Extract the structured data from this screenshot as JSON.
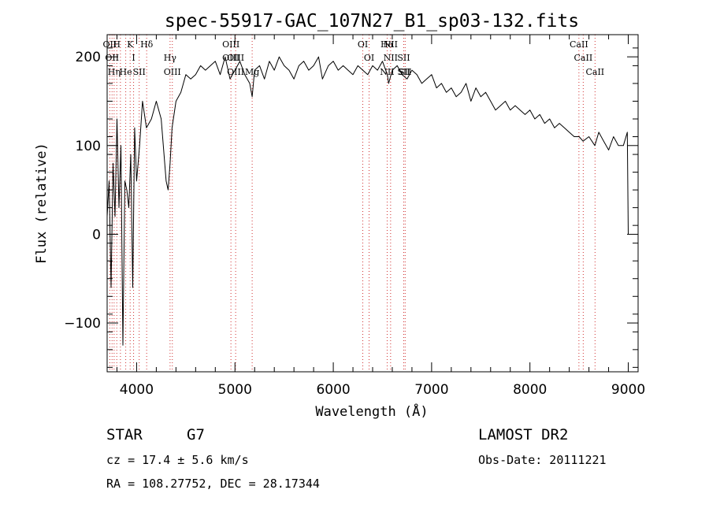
{
  "chart_data": {
    "type": "line",
    "title": "spec-55917-GAC_107N27_B1_sp03-132.fits",
    "xlabel": "Wavelength (Å)",
    "ylabel": "Flux (relative)",
    "xlim": [
      3700,
      9100
    ],
    "ylim": [
      -155,
      225
    ],
    "xticks": [
      4000,
      5000,
      6000,
      7000,
      8000,
      9000
    ],
    "yticks": [
      -100,
      0,
      100,
      200
    ],
    "grid": false,
    "series": [
      {
        "x": [
          3700,
          3720,
          3740,
          3760,
          3780,
          3800,
          3820,
          3840,
          3860,
          3880,
          3900,
          3920,
          3940,
          3960,
          3980,
          4000,
          4030,
          4060,
          4100,
          4150,
          4200,
          4250,
          4300,
          4320,
          4340,
          4360,
          4400,
          4450,
          4500,
          4550,
          4600,
          4650,
          4700,
          4750,
          4800,
          4850,
          4900,
          4950,
          5000,
          5050,
          5100,
          5150,
          5175,
          5200,
          5250,
          5300,
          5350,
          5400,
          5450,
          5500,
          5550,
          5600,
          5650,
          5700,
          5750,
          5800,
          5850,
          5890,
          5950,
          6000,
          6050,
          6100,
          6150,
          6200,
          6250,
          6300,
          6350,
          6400,
          6450,
          6500,
          6550,
          6563,
          6600,
          6650,
          6700,
          6750,
          6800,
          6850,
          6900,
          6950,
          7000,
          7050,
          7100,
          7150,
          7200,
          7250,
          7300,
          7350,
          7400,
          7450,
          7500,
          7550,
          7600,
          7650,
          7700,
          7750,
          7800,
          7850,
          7900,
          7950,
          8000,
          8050,
          8100,
          8150,
          8200,
          8250,
          8300,
          8350,
          8400,
          8450,
          8500,
          8540,
          8600,
          8660,
          8700,
          8750,
          8800,
          8850,
          8900,
          8950,
          8990,
          9000
        ],
        "y": [
          20,
          60,
          -60,
          80,
          20,
          130,
          30,
          100,
          -125,
          60,
          50,
          30,
          90,
          -60,
          120,
          60,
          100,
          150,
          120,
          130,
          150,
          130,
          60,
          50,
          80,
          120,
          150,
          160,
          180,
          175,
          180,
          190,
          185,
          190,
          195,
          180,
          200,
          175,
          185,
          195,
          180,
          170,
          155,
          185,
          190,
          175,
          195,
          185,
          200,
          190,
          185,
          175,
          190,
          195,
          185,
          190,
          200,
          175,
          190,
          195,
          185,
          190,
          185,
          180,
          190,
          185,
          180,
          190,
          185,
          195,
          180,
          170,
          185,
          190,
          180,
          175,
          185,
          180,
          170,
          175,
          180,
          165,
          170,
          160,
          165,
          155,
          160,
          170,
          150,
          165,
          155,
          160,
          150,
          140,
          145,
          150,
          140,
          145,
          140,
          135,
          140,
          130,
          135,
          125,
          130,
          120,
          125,
          120,
          115,
          110,
          110,
          105,
          110,
          100,
          115,
          105,
          95,
          110,
          100,
          100,
          115,
          0
        ]
      }
    ],
    "line_markers": [
      {
        "x": 3727,
        "labels": [
          "OII"
        ]
      },
      {
        "x": 3750,
        "labels": [
          "OII"
        ]
      },
      {
        "x": 3771,
        "labels": [
          "Hη"
        ]
      },
      {
        "x": 3798,
        "labels": [
          "H"
        ]
      },
      {
        "x": 3835,
        "labels": []
      },
      {
        "x": 3889,
        "labels": [
          "He"
        ]
      },
      {
        "x": 3934,
        "labels": [
          "K"
        ]
      },
      {
        "x": 3969,
        "labels": [
          "I"
        ]
      },
      {
        "x": 4026,
        "labels": [
          "SII"
        ]
      },
      {
        "x": 4102,
        "labels": [
          "Hδ"
        ]
      },
      {
        "x": 4340,
        "labels": [
          "Hγ"
        ]
      },
      {
        "x": 4363,
        "labels": [
          "OIII"
        ]
      },
      {
        "x": 4959,
        "labels": [
          "OIII",
          "OIII"
        ]
      },
      {
        "x": 5007,
        "labels": [
          "OIII",
          "OIII"
        ]
      },
      {
        "x": 5175,
        "labels": [
          "Mg"
        ]
      },
      {
        "x": 6300,
        "labels": [
          "OI"
        ]
      },
      {
        "x": 6364,
        "labels": [
          "OI"
        ]
      },
      {
        "x": 6548,
        "labels": [
          "NII",
          "Hα"
        ]
      },
      {
        "x": 6583,
        "labels": [
          "NII",
          "NII"
        ]
      },
      {
        "x": 6716,
        "labels": [
          "SII",
          "SII"
        ]
      },
      {
        "x": 6731,
        "labels": [
          "SII"
        ]
      },
      {
        "x": 8498,
        "labels": [
          "CaII"
        ]
      },
      {
        "x": 8542,
        "labels": [
          "CaII"
        ]
      },
      {
        "x": 8662,
        "labels": [
          "CaII"
        ]
      }
    ]
  },
  "info": {
    "object_class": "STAR",
    "subclass": "G7",
    "survey": "LAMOST DR2",
    "redshift": "cz = 17.4 ± 5.6 km/s",
    "obs_date": "Obs-Date: 20111221",
    "coordinates": "RA = 108.27752, DEC =  28.17344"
  }
}
